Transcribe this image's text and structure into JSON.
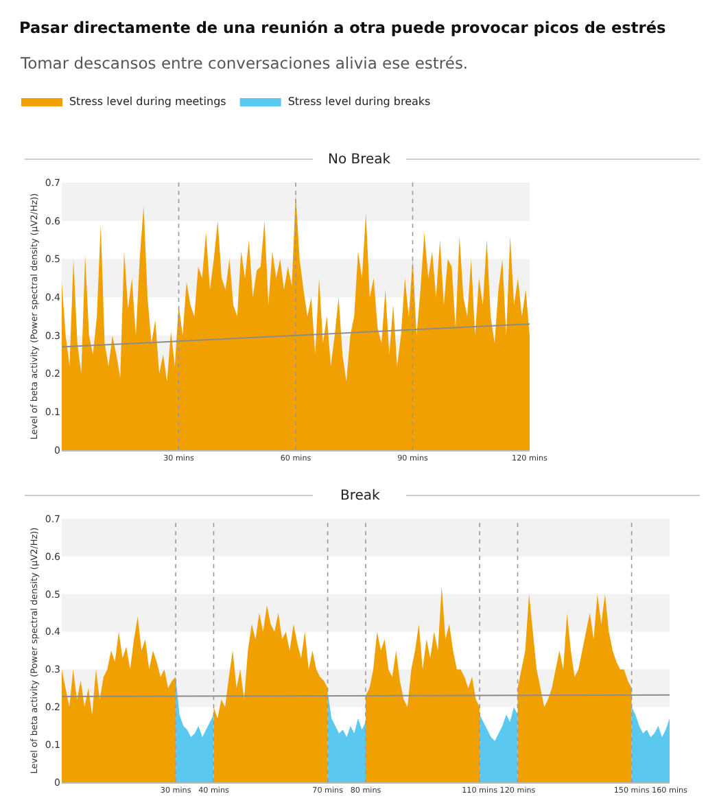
{
  "chart_data": [
    {
      "type": "area",
      "title": "No Break",
      "annotations": [
        "Pasar directamente de una reunión a otra puede provocar picos de estrés",
        "Tomar descansos entre conversaciones alivia ese estrés."
      ],
      "ylabel": "Level of beta activity (Power spectral density (μV2/Hz))",
      "xlim": [
        0,
        120
      ],
      "ylim": [
        0,
        0.7
      ],
      "yticks": [
        0,
        0.1,
        0.2,
        0.3,
        0.4,
        0.5,
        0.6,
        0.7
      ],
      "xticks": [
        {
          "value": 30,
          "label": "30 mins"
        },
        {
          "value": 60,
          "label": "60 mins"
        },
        {
          "value": 90,
          "label": "90 mins"
        },
        {
          "value": 120,
          "label": "120 mins"
        }
      ],
      "grid": false,
      "legend": "top left",
      "bands": [
        {
          "axis": "y",
          "from": 0.6,
          "to": 0.7,
          "color": "#f2f2f2"
        },
        {
          "axis": "y",
          "from": 0.4,
          "to": 0.5,
          "color": "#f2f2f2"
        },
        {
          "axis": "y",
          "from": 0.2,
          "to": 0.3,
          "color": "#f2f2f2"
        }
      ],
      "ref_lines": [
        {
          "axis": "x",
          "value": 30,
          "color": "#999999",
          "line_style": "dotted"
        },
        {
          "axis": "x",
          "value": 60,
          "color": "#999999",
          "line_style": "dotted"
        },
        {
          "axis": "x",
          "value": 90,
          "color": "#999999",
          "line_style": "dotted"
        }
      ],
      "series": [
        {
          "name": "Stress level during meetings",
          "color": "#f0a000",
          "x": [
            0,
            1,
            2,
            3,
            4,
            5,
            6,
            7,
            8,
            9,
            10,
            11,
            12,
            13,
            14,
            15,
            16,
            17,
            18,
            19,
            20,
            21,
            22,
            23,
            24,
            25,
            26,
            27,
            28,
            29,
            30,
            31,
            32,
            33,
            34,
            35,
            36,
            37,
            38,
            39,
            40,
            41,
            42,
            43,
            44,
            45,
            46,
            47,
            48,
            49,
            50,
            51,
            52,
            53,
            54,
            55,
            56,
            57,
            58,
            59,
            60,
            61,
            62,
            63,
            64,
            65,
            66,
            67,
            68,
            69,
            70,
            71,
            72,
            73,
            74,
            75,
            76,
            77,
            78,
            79,
            80,
            81,
            82,
            83,
            84,
            85,
            86,
            87,
            88,
            89,
            90,
            91,
            92,
            93,
            94,
            95,
            96,
            97,
            98,
            99,
            100,
            101,
            102,
            103,
            104,
            105,
            106,
            107,
            108,
            109,
            110,
            111,
            112,
            113,
            114,
            115,
            116,
            117,
            118,
            119,
            120
          ],
          "values": [
            0.44,
            0.3,
            0.22,
            0.5,
            0.28,
            0.2,
            0.51,
            0.3,
            0.25,
            0.35,
            0.59,
            0.28,
            0.22,
            0.3,
            0.25,
            0.19,
            0.52,
            0.37,
            0.45,
            0.3,
            0.5,
            0.64,
            0.4,
            0.28,
            0.34,
            0.2,
            0.25,
            0.18,
            0.31,
            0.22,
            0.38,
            0.3,
            0.44,
            0.38,
            0.35,
            0.48,
            0.45,
            0.57,
            0.42,
            0.5,
            0.6,
            0.45,
            0.42,
            0.5,
            0.38,
            0.35,
            0.52,
            0.45,
            0.55,
            0.4,
            0.47,
            0.48,
            0.6,
            0.38,
            0.52,
            0.45,
            0.5,
            0.42,
            0.48,
            0.43,
            0.67,
            0.5,
            0.42,
            0.35,
            0.4,
            0.25,
            0.45,
            0.28,
            0.35,
            0.22,
            0.3,
            0.4,
            0.25,
            0.18,
            0.3,
            0.35,
            0.52,
            0.45,
            0.62,
            0.4,
            0.45,
            0.32,
            0.28,
            0.42,
            0.25,
            0.38,
            0.22,
            0.3,
            0.45,
            0.35,
            0.5,
            0.3,
            0.42,
            0.57,
            0.45,
            0.52,
            0.4,
            0.55,
            0.38,
            0.5,
            0.48,
            0.32,
            0.56,
            0.4,
            0.35,
            0.5,
            0.3,
            0.45,
            0.38,
            0.55,
            0.35,
            0.28,
            0.42,
            0.5,
            0.3,
            0.56,
            0.38,
            0.45,
            0.35,
            0.42,
            0.3
          ]
        },
        {
          "type": "line",
          "color": "#8c8c8c",
          "x": [
            0,
            120
          ],
          "values": [
            0.27,
            0.33
          ]
        }
      ]
    },
    {
      "type": "area",
      "title": "Break",
      "ylabel": "Level of beta activity (Power spectral density (μV2/Hz))",
      "xlim": [
        0,
        160
      ],
      "ylim": [
        0,
        0.7
      ],
      "yticks": [
        0,
        0.1,
        0.2,
        0.3,
        0.4,
        0.5,
        0.6,
        0.7
      ],
      "xticks": [
        {
          "value": 30,
          "label": "30 mins"
        },
        {
          "value": 40,
          "label": "40 mins"
        },
        {
          "value": 70,
          "label": "70 mins"
        },
        {
          "value": 80,
          "label": "80 mins"
        },
        {
          "value": 110,
          "label": "110 mins"
        },
        {
          "value": 120,
          "label": "120 mins"
        },
        {
          "value": 150,
          "label": "150 mins"
        },
        {
          "value": 160,
          "label": "160 mins"
        }
      ],
      "grid": false,
      "bands": [
        {
          "axis": "y",
          "from": 0.6,
          "to": 0.7,
          "color": "#f2f2f2"
        },
        {
          "axis": "y",
          "from": 0.4,
          "to": 0.5,
          "color": "#f2f2f2"
        },
        {
          "axis": "y",
          "from": 0.2,
          "to": 0.3,
          "color": "#f2f2f2"
        }
      ],
      "ref_lines": [
        {
          "axis": "x",
          "value": 30,
          "color": "#999999",
          "line_style": "dotted"
        },
        {
          "axis": "x",
          "value": 40,
          "color": "#999999",
          "line_style": "dotted"
        },
        {
          "axis": "x",
          "value": 70,
          "color": "#999999",
          "line_style": "dotted"
        },
        {
          "axis": "x",
          "value": 80,
          "color": "#999999",
          "line_style": "dotted"
        },
        {
          "axis": "x",
          "value": 110,
          "color": "#999999",
          "line_style": "dotted"
        },
        {
          "axis": "x",
          "value": 120,
          "color": "#999999",
          "line_style": "dotted"
        },
        {
          "axis": "x",
          "value": 150,
          "color": "#999999",
          "line_style": "dotted"
        }
      ],
      "series": [
        {
          "color": "#f0a000",
          "x": [
            0,
            1,
            2,
            3,
            4,
            5,
            6,
            7,
            8,
            9,
            10,
            11,
            12,
            13,
            14,
            15,
            16,
            17,
            18,
            19,
            20,
            21,
            22,
            23,
            24,
            25,
            26,
            27,
            28,
            29,
            30,
            35,
            40,
            41,
            42,
            43,
            44,
            45,
            46,
            47,
            48,
            49,
            50,
            51,
            52,
            53,
            54,
            55,
            56,
            57,
            58,
            59,
            60,
            61,
            62,
            63,
            64,
            65,
            66,
            67,
            68,
            69,
            70,
            75,
            80,
            81,
            82,
            83,
            84,
            85,
            86,
            87,
            88,
            89,
            90,
            91,
            92,
            93,
            94,
            95,
            96,
            97,
            98,
            99,
            100,
            101,
            102,
            103,
            104,
            105,
            106,
            107,
            108,
            109,
            110,
            115,
            120,
            121,
            122,
            123,
            124,
            125,
            126,
            127,
            128,
            129,
            130,
            131,
            132,
            133,
            134,
            135,
            136,
            137,
            138,
            139,
            140,
            141,
            142,
            143,
            144,
            145,
            146,
            147,
            148,
            149,
            150
          ],
          "values": [
            0.3,
            0.25,
            0.2,
            0.3,
            0.22,
            0.27,
            0.2,
            0.25,
            0.18,
            0.3,
            0.22,
            0.28,
            0.3,
            0.35,
            0.32,
            0.4,
            0.33,
            0.36,
            0.3,
            0.38,
            0.44,
            0.35,
            0.38,
            0.3,
            0.35,
            0.32,
            0.28,
            0.3,
            0.25,
            0.27,
            0.28,
            null,
            0.2,
            0.17,
            0.22,
            0.2,
            0.28,
            0.35,
            0.25,
            0.3,
            0.22,
            0.35,
            0.42,
            0.38,
            0.45,
            0.4,
            0.47,
            0.42,
            0.4,
            0.45,
            0.38,
            0.4,
            0.35,
            0.42,
            0.37,
            0.33,
            0.4,
            0.3,
            0.35,
            0.3,
            0.28,
            0.27,
            0.25,
            null,
            0.23,
            0.25,
            0.3,
            0.4,
            0.35,
            0.38,
            0.3,
            0.28,
            0.35,
            0.27,
            0.22,
            0.2,
            0.3,
            0.35,
            0.42,
            0.3,
            0.38,
            0.33,
            0.4,
            0.35,
            0.52,
            0.38,
            0.42,
            0.35,
            0.3,
            0.3,
            0.28,
            0.25,
            0.28,
            0.22,
            0.2,
            null,
            0.25,
            0.3,
            0.35,
            0.5,
            0.4,
            0.3,
            0.25,
            0.2,
            0.22,
            0.25,
            0.3,
            0.35,
            0.3,
            0.45,
            0.35,
            0.28,
            0.3,
            0.35,
            0.4,
            0.45,
            0.38,
            0.5,
            0.42,
            0.5,
            0.4,
            0.35,
            0.32,
            0.3,
            0.3,
            0.27,
            0.25
          ]
        },
        {
          "name": "Stress level during breaks",
          "color": "#5bc8f0",
          "x": [
            30,
            31,
            32,
            33,
            34,
            35,
            36,
            37,
            38,
            39,
            40,
            55,
            70,
            71,
            72,
            73,
            74,
            75,
            76,
            77,
            78,
            79,
            80,
            95,
            110,
            111,
            112,
            113,
            114,
            115,
            116,
            117,
            118,
            119,
            120,
            135,
            150,
            151,
            152,
            153,
            154,
            155,
            156,
            157,
            158,
            159,
            160
          ],
          "values": [
            0.28,
            0.18,
            0.15,
            0.14,
            0.12,
            0.13,
            0.15,
            0.12,
            0.14,
            0.16,
            0.18,
            null,
            0.24,
            0.17,
            0.15,
            0.13,
            0.14,
            0.12,
            0.15,
            0.13,
            0.17,
            0.14,
            0.16,
            null,
            0.18,
            0.16,
            0.14,
            0.12,
            0.11,
            0.13,
            0.15,
            0.18,
            0.16,
            0.2,
            0.18,
            null,
            0.2,
            0.18,
            0.15,
            0.13,
            0.14,
            0.12,
            0.13,
            0.15,
            0.12,
            0.14,
            0.17
          ]
        },
        {
          "type": "line",
          "color": "#8c8c8c",
          "x": [
            0,
            160
          ],
          "values": [
            0.228,
            0.232
          ]
        }
      ]
    }
  ]
}
